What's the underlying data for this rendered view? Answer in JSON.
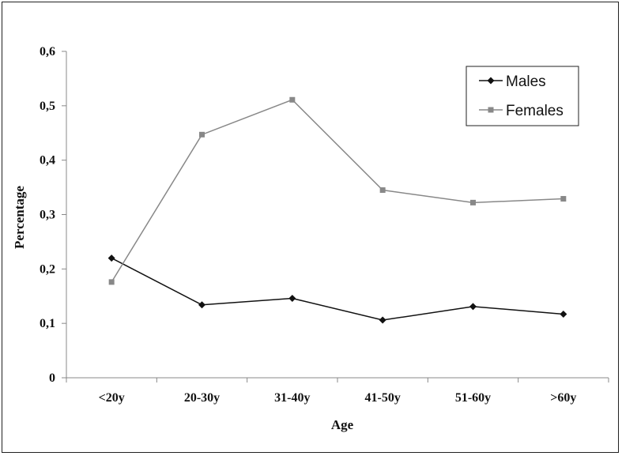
{
  "chart_data": {
    "type": "line",
    "title": "",
    "xlabel": "Age",
    "ylabel": "Percentage",
    "categories": [
      "<20y",
      "20-30y",
      "31-40y",
      "41-50y",
      "51-60y",
      ">60y"
    ],
    "ylim": [
      0,
      0.6
    ],
    "yticks": [
      "0",
      "0,1",
      "0,2",
      "0,3",
      "0,4",
      "0,5",
      "0,6"
    ],
    "ytick_values": [
      0,
      0.1,
      0.2,
      0.3,
      0.4,
      0.5,
      0.6
    ],
    "grid": false,
    "legend_position": "top-right",
    "series": [
      {
        "name": "Males",
        "color": "#111111",
        "marker": "diamond",
        "values": [
          0.22,
          0.134,
          0.146,
          0.106,
          0.131,
          0.117
        ]
      },
      {
        "name": "Females",
        "color": "#888888",
        "marker": "square",
        "values": [
          0.176,
          0.447,
          0.511,
          0.345,
          0.322,
          0.329
        ]
      }
    ]
  }
}
